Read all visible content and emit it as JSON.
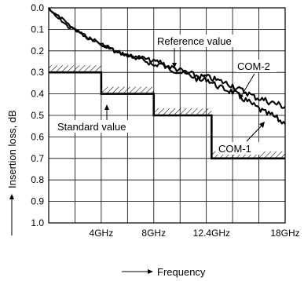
{
  "chart_data": {
    "type": "line",
    "xlabel": "Frequency",
    "ylabel": "Insertion loss, dB",
    "xlim": [
      0,
      18
    ],
    "ylim": [
      0,
      1
    ],
    "y_inverted": true,
    "grid": true,
    "x_ticks": [
      {
        "value": 4,
        "label": "4GHz"
      },
      {
        "value": 8,
        "label": "8GHz"
      },
      {
        "value": 12.4,
        "label": "12.4GHz"
      },
      {
        "value": 18,
        "label": "18GHz"
      }
    ],
    "y_ticks": [
      {
        "value": 0.0,
        "label": "0.0"
      },
      {
        "value": 0.1,
        "label": "0.1"
      },
      {
        "value": 0.2,
        "label": "0.2"
      },
      {
        "value": 0.3,
        "label": "0.3"
      },
      {
        "value": 0.4,
        "label": "0.4"
      },
      {
        "value": 0.5,
        "label": "0.5"
      },
      {
        "value": 0.6,
        "label": "0.6"
      },
      {
        "value": 0.7,
        "label": "0.7"
      },
      {
        "value": 0.8,
        "label": "0.8"
      },
      {
        "value": 0.9,
        "label": "0.9"
      },
      {
        "value": 1.0,
        "label": "1.0"
      }
    ],
    "series": [
      {
        "name": "COM-1",
        "x": [
          0,
          0.5,
          1,
          1.5,
          2,
          2.5,
          3,
          3.5,
          4,
          4.5,
          5,
          5.5,
          6,
          6.5,
          7,
          7.5,
          8,
          8.5,
          9,
          9.5,
          10,
          10.5,
          11,
          11.5,
          12,
          12.5,
          13,
          13.5,
          14,
          14.5,
          15,
          15.5,
          16,
          16.5,
          17,
          17.5,
          18
        ],
        "values": [
          0.0,
          0.04,
          0.06,
          0.09,
          0.1,
          0.12,
          0.14,
          0.15,
          0.17,
          0.18,
          0.2,
          0.21,
          0.22,
          0.23,
          0.24,
          0.25,
          0.27,
          0.26,
          0.28,
          0.29,
          0.3,
          0.31,
          0.32,
          0.34,
          0.33,
          0.35,
          0.37,
          0.38,
          0.39,
          0.41,
          0.43,
          0.45,
          0.47,
          0.49,
          0.5,
          0.52,
          0.54
        ]
      },
      {
        "name": "COM-2",
        "x": [
          0,
          0.5,
          1,
          1.5,
          2,
          2.5,
          3,
          3.5,
          4,
          4.5,
          5,
          5.5,
          6,
          6.5,
          7,
          7.5,
          8,
          8.5,
          9,
          9.5,
          10,
          10.5,
          11,
          11.5,
          12,
          12.5,
          13,
          13.5,
          14,
          14.5,
          15,
          15.5,
          16,
          16.5,
          17,
          17.5,
          18
        ],
        "values": [
          0.0,
          0.03,
          0.05,
          0.08,
          0.1,
          0.12,
          0.14,
          0.15,
          0.17,
          0.18,
          0.2,
          0.21,
          0.22,
          0.23,
          0.23,
          0.24,
          0.25,
          0.25,
          0.27,
          0.28,
          0.29,
          0.3,
          0.31,
          0.32,
          0.32,
          0.33,
          0.34,
          0.35,
          0.36,
          0.38,
          0.39,
          0.41,
          0.42,
          0.43,
          0.44,
          0.45,
          0.46
        ]
      }
    ],
    "standard_value": {
      "label": "Standard value",
      "steps": [
        {
          "x0": 0,
          "x1": 4,
          "y": 0.3
        },
        {
          "x0": 4,
          "x1": 8,
          "y": 0.4
        },
        {
          "x0": 8,
          "x1": 12.4,
          "y": 0.5
        },
        {
          "x0": 12.4,
          "x1": 18,
          "y": 0.7
        }
      ]
    },
    "annotations": [
      {
        "name": "reference-value",
        "text": "Reference value"
      },
      {
        "name": "com-2",
        "text": "COM-2"
      },
      {
        "name": "com-1",
        "text": "COM-1"
      },
      {
        "name": "standard-value",
        "text": "Standard value"
      }
    ]
  }
}
